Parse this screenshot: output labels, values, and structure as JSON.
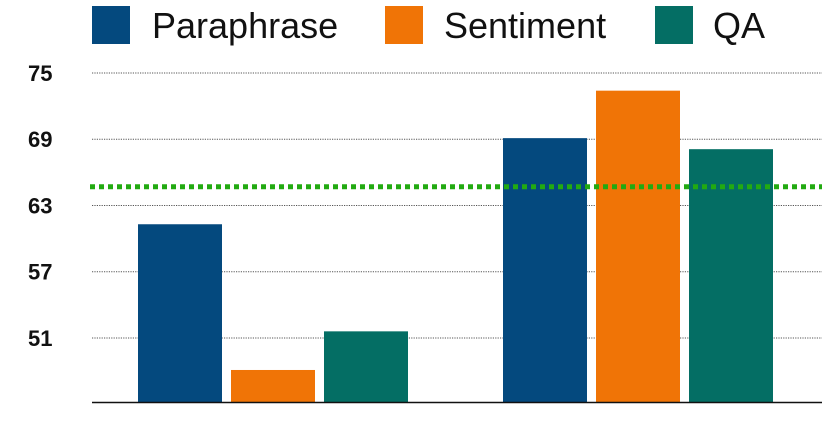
{
  "chart_data": {
    "type": "bar",
    "categories": [
      "",
      ""
    ],
    "series": [
      {
        "name": "Paraphrase",
        "color": "#04497e",
        "values": [
          61.3,
          69.1
        ]
      },
      {
        "name": "Sentiment",
        "color": "#f07406",
        "values": [
          48.1,
          73.4
        ]
      },
      {
        "name": "QA",
        "color": "#046e64",
        "values": [
          51.6,
          68.1
        ]
      }
    ],
    "yticks": [
      "75",
      "69",
      "63",
      "57",
      "51"
    ],
    "ylim": [
      45.2,
      75
    ],
    "grid": true,
    "legend_position": "top",
    "reference_line": {
      "value": 64.7,
      "color": "#22aa11",
      "style": "dotted"
    },
    "title": "",
    "xlabel": "",
    "ylabel": ""
  }
}
